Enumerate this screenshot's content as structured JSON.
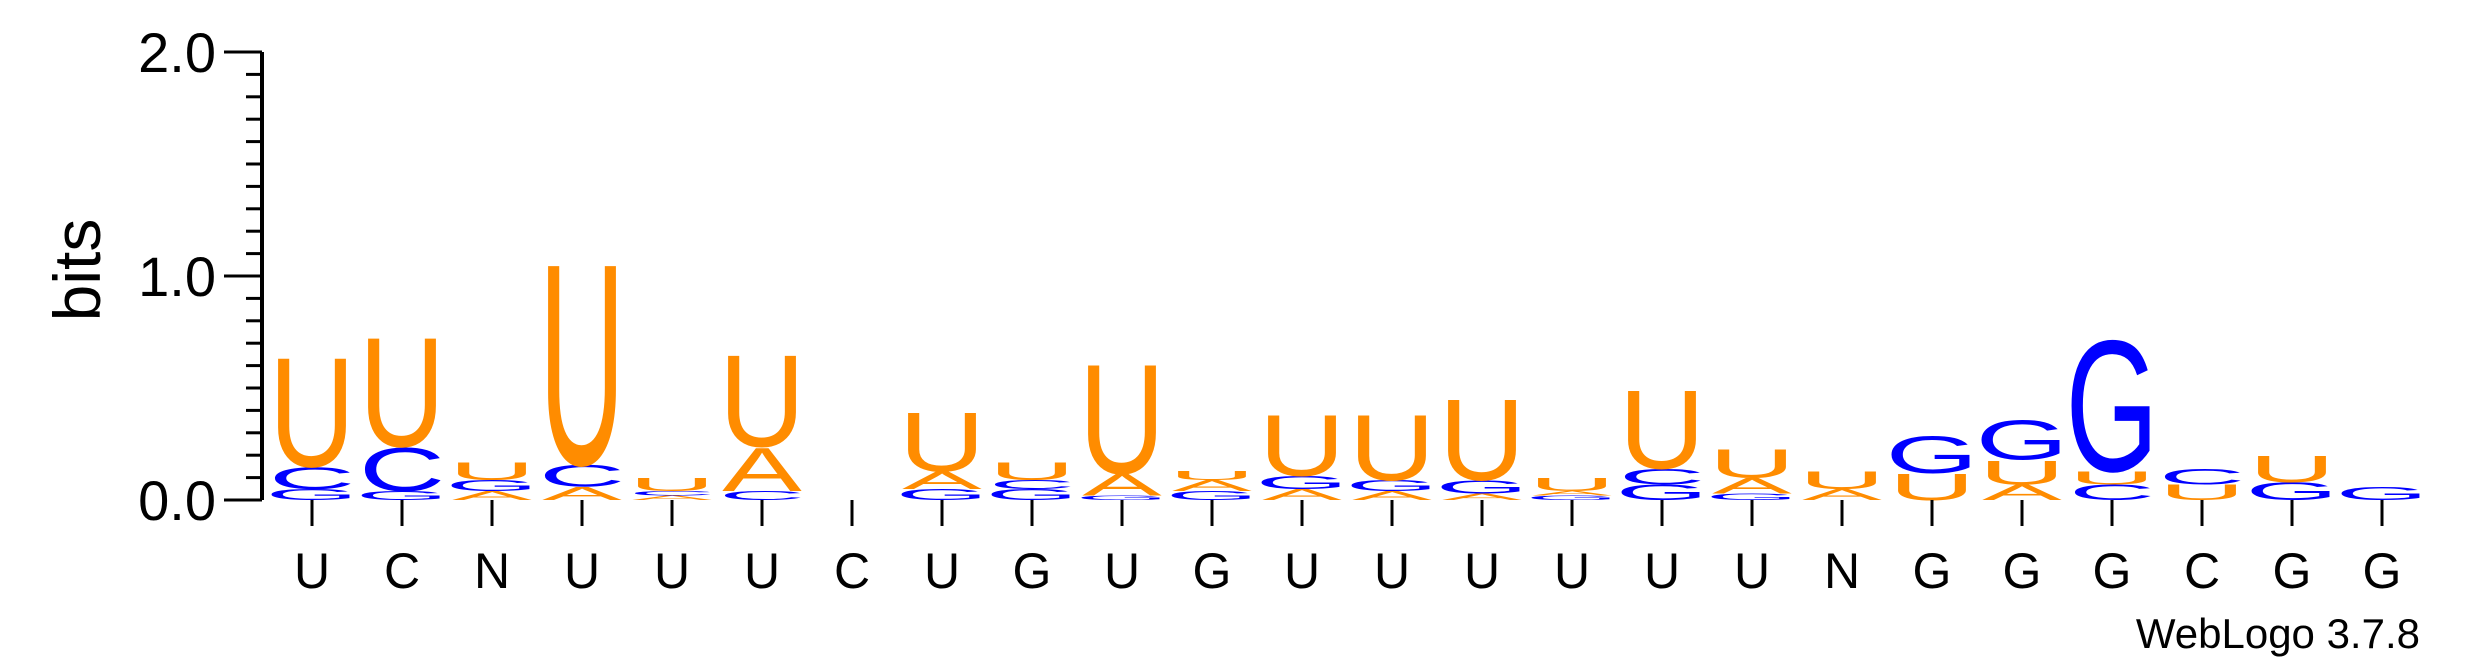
{
  "chart_data": {
    "type": "sequence-logo",
    "ylabel": "bits",
    "ylim": [
      0,
      2.0
    ],
    "yticks": [
      {
        "value": 0.0,
        "label": "0.0"
      },
      {
        "value": 1.0,
        "label": "1.0"
      },
      {
        "value": 2.0,
        "label": "2.0"
      }
    ],
    "categories": [
      "U",
      "C",
      "N",
      "U",
      "U",
      "U",
      "C",
      "U",
      "G",
      "U",
      "G",
      "U",
      "U",
      "U",
      "U",
      "U",
      "U",
      "N",
      "G",
      "G",
      "G",
      "C",
      "G",
      "G"
    ],
    "colors": {
      "U": "#FF8C00",
      "A": "#FF8C00",
      "C": "#0000FF",
      "G": "#0000FF"
    },
    "positions": [
      [
        {
          "l": "G",
          "h": 0.05
        },
        {
          "l": "C",
          "h": 0.1
        },
        {
          "l": "U",
          "h": 0.5
        }
      ],
      [
        {
          "l": "G",
          "h": 0.04
        },
        {
          "l": "C",
          "h": 0.2
        },
        {
          "l": "U",
          "h": 0.5
        }
      ],
      [
        {
          "l": "A",
          "h": 0.04
        },
        {
          "l": "G",
          "h": 0.05
        },
        {
          "l": "U",
          "h": 0.08
        }
      ],
      [
        {
          "l": "A",
          "h": 0.06
        },
        {
          "l": "C",
          "h": 0.1
        },
        {
          "l": "U",
          "h": 0.92
        }
      ],
      [
        {
          "l": "A",
          "h": 0.02
        },
        {
          "l": "C",
          "h": 0.02
        },
        {
          "l": "U",
          "h": 0.06
        }
      ],
      [
        {
          "l": "C",
          "h": 0.04
        },
        {
          "l": "A",
          "h": 0.2
        },
        {
          "l": "U",
          "h": 0.42
        }
      ],
      [],
      [
        {
          "l": "G",
          "h": 0.05
        },
        {
          "l": "A",
          "h": 0.08
        },
        {
          "l": "U",
          "h": 0.27
        }
      ],
      [
        {
          "l": "G",
          "h": 0.05
        },
        {
          "l": "C",
          "h": 0.04
        },
        {
          "l": "U",
          "h": 0.08
        }
      ],
      [
        {
          "l": "G",
          "h": 0.02
        },
        {
          "l": "A",
          "h": 0.1
        },
        {
          "l": "U",
          "h": 0.5
        }
      ],
      [
        {
          "l": "G",
          "h": 0.04
        },
        {
          "l": "A",
          "h": 0.05
        },
        {
          "l": "U",
          "h": 0.04
        }
      ],
      [
        {
          "l": "A",
          "h": 0.05
        },
        {
          "l": "G",
          "h": 0.06
        },
        {
          "l": "U",
          "h": 0.28
        }
      ],
      [
        {
          "l": "A",
          "h": 0.04
        },
        {
          "l": "G",
          "h": 0.05
        },
        {
          "l": "U",
          "h": 0.3
        }
      ],
      [
        {
          "l": "A",
          "h": 0.03
        },
        {
          "l": "G",
          "h": 0.06
        },
        {
          "l": "U",
          "h": 0.37
        }
      ],
      [
        {
          "l": "G",
          "h": 0.02
        },
        {
          "l": "A",
          "h": 0.02
        },
        {
          "l": "U",
          "h": 0.06
        }
      ],
      [
        {
          "l": "G",
          "h": 0.07
        },
        {
          "l": "C",
          "h": 0.07
        },
        {
          "l": "U",
          "h": 0.36
        }
      ],
      [
        {
          "l": "G",
          "h": 0.03
        },
        {
          "l": "A",
          "h": 0.07
        },
        {
          "l": "U",
          "h": 0.13
        }
      ],
      [
        {
          "l": "A",
          "h": 0.05
        },
        {
          "l": "U",
          "h": 0.08
        }
      ],
      [
        {
          "l": "U",
          "h": 0.12
        },
        {
          "l": "G",
          "h": 0.17
        }
      ],
      [
        {
          "l": "A",
          "h": 0.07
        },
        {
          "l": "U",
          "h": 0.11
        },
        {
          "l": "G",
          "h": 0.18
        }
      ],
      [
        {
          "l": "C",
          "h": 0.07
        },
        {
          "l": "U",
          "h": 0.06
        },
        {
          "l": "G",
          "h": 0.6
        }
      ],
      [
        {
          "l": "U",
          "h": 0.07
        },
        {
          "l": "C",
          "h": 0.07
        }
      ],
      [
        {
          "l": "G",
          "h": 0.08
        },
        {
          "l": "U",
          "h": 0.12
        }
      ],
      [
        {
          "l": "G",
          "h": 0.06
        }
      ]
    ]
  },
  "credit": "WebLogo 3.7.8"
}
